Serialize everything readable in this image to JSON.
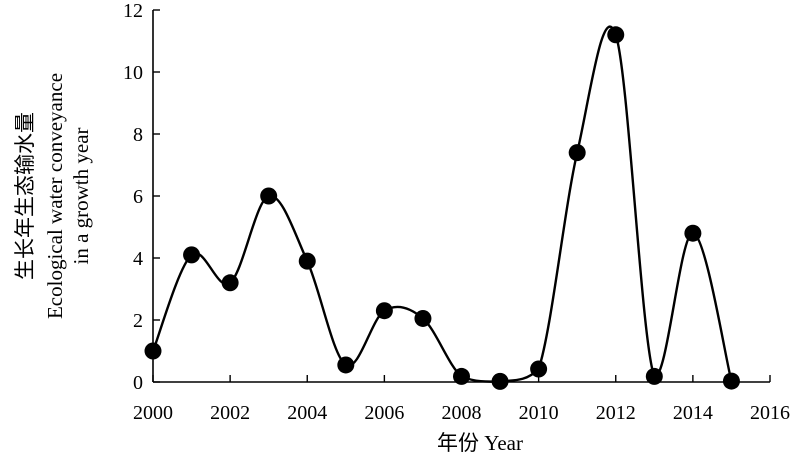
{
  "chart_data": {
    "type": "line",
    "title": "",
    "xlabel": "年份 Year",
    "ylabel_lines": [
      "生长年生态输水量",
      "Ecological water conveyance",
      "in a growth year"
    ],
    "xlim": [
      2000,
      2016
    ],
    "ylim": [
      0,
      12
    ],
    "x_ticks": [
      "2000",
      "2002",
      "2004",
      "2006",
      "2008",
      "2010",
      "2012",
      "2014",
      "2016"
    ],
    "y_ticks": [
      "0",
      "2",
      "4",
      "6",
      "8",
      "10",
      "12"
    ],
    "grid": false,
    "legend": "none",
    "series": [
      {
        "x": [
          2000,
          2001,
          2002,
          2003,
          2004,
          2005,
          2006,
          2007,
          2008,
          2009,
          2010,
          2011,
          2012,
          2013,
          2014,
          2015
        ],
        "values": [
          1.0,
          4.1,
          3.2,
          6.0,
          3.9,
          0.55,
          2.3,
          2.05,
          0.18,
          0.02,
          0.42,
          7.4,
          11.2,
          0.18,
          4.8,
          0.03
        ]
      }
    ],
    "colors": {
      "line": "#000000",
      "marker": "#000000"
    }
  }
}
